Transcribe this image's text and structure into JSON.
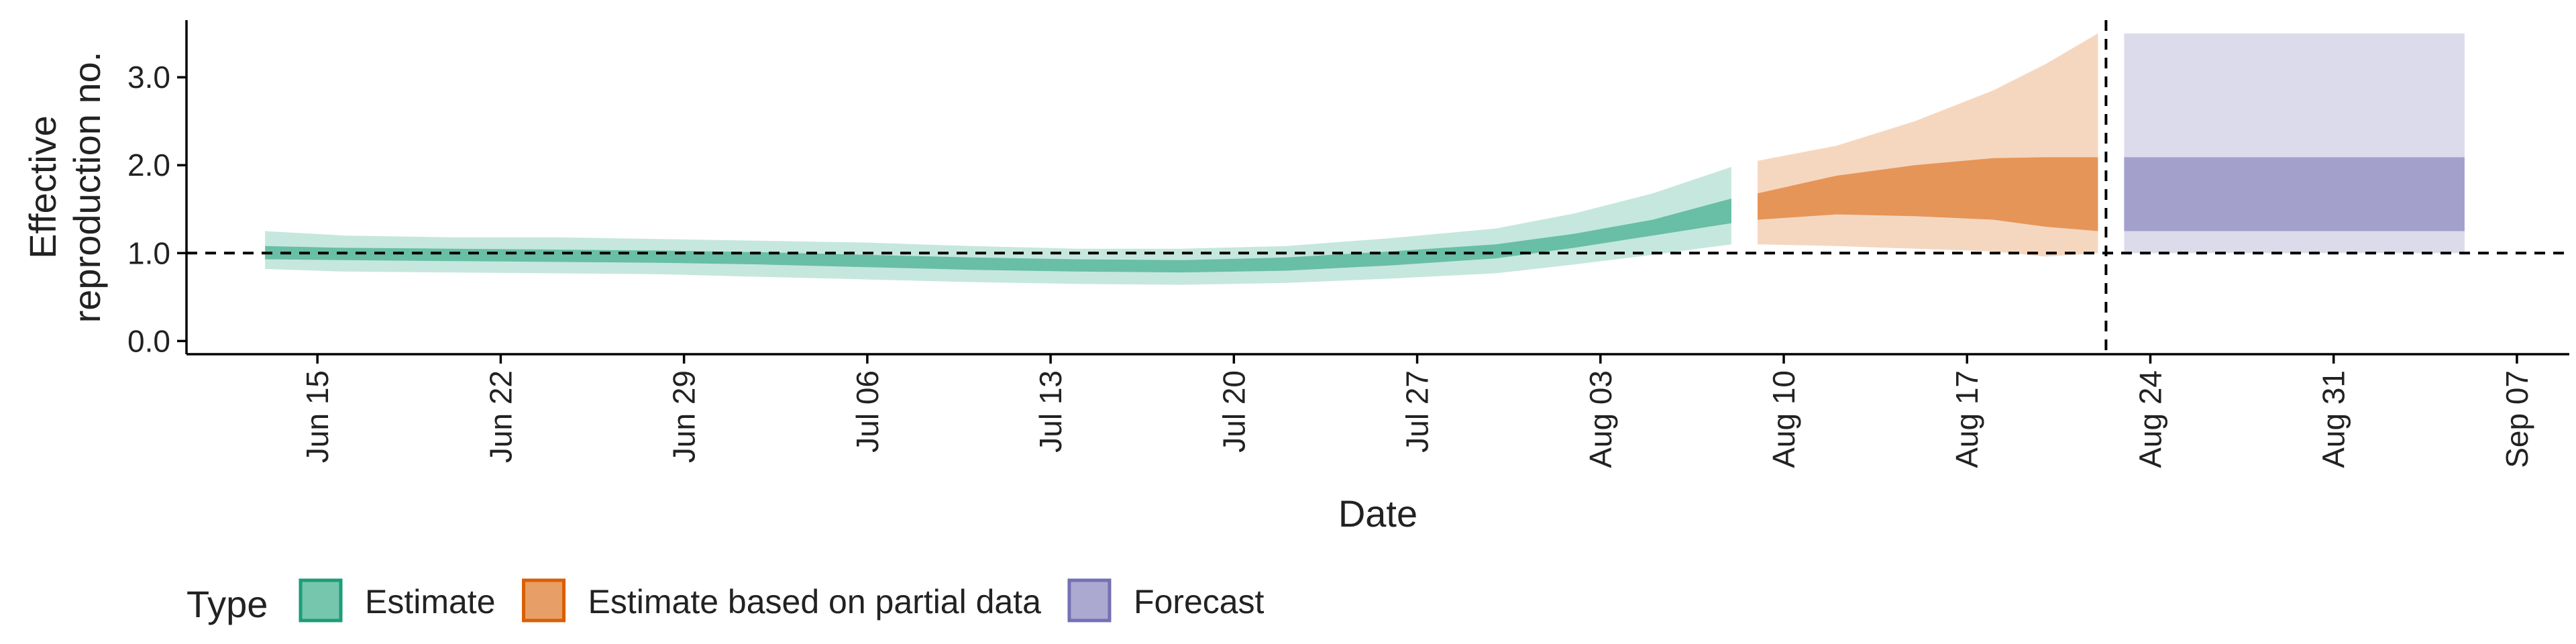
{
  "chart_data": {
    "type": "area",
    "xlabel": "Date",
    "ylabel_lines": [
      "Effective",
      "reproduction no."
    ],
    "ylim": [
      -0.15,
      3.65
    ],
    "xlim": [
      "2020-06-10",
      "2020-09-09"
    ],
    "y_ticks": [
      0.0,
      1.0,
      2.0,
      3.0
    ],
    "y_tick_labels": [
      "0.0",
      "1.0",
      "2.0",
      "3.0"
    ],
    "x_ticks": [
      "2020-06-15",
      "2020-06-22",
      "2020-06-29",
      "2020-07-06",
      "2020-07-13",
      "2020-07-20",
      "2020-07-27",
      "2020-08-03",
      "2020-08-10",
      "2020-08-17",
      "2020-08-24",
      "2020-08-31",
      "2020-09-07"
    ],
    "x_tick_labels": [
      "Jun 15",
      "Jun 22",
      "Jun 29",
      "Jul 06",
      "Jul 13",
      "Jul 20",
      "Jul 27",
      "Aug 03",
      "Aug 10",
      "Aug 17",
      "Aug 24",
      "Aug 31",
      "Sep 07"
    ],
    "reference_line_y": 1.0,
    "forecast_start_date": "2020-08-22",
    "legend": {
      "title": "Type",
      "placement": "bottom-left",
      "items": [
        {
          "label": "Estimate",
          "color": "#1b9e77"
        },
        {
          "label": "Estimate based on partial data",
          "color": "#d95f02"
        },
        {
          "label": "Forecast",
          "color": "#7570b3"
        }
      ]
    },
    "series": [
      {
        "name": "Estimate",
        "color": "#1b9e77",
        "points": [
          {
            "date": "2020-06-13",
            "lo90": 0.82,
            "lo50": 0.93,
            "hi50": 1.08,
            "hi90": 1.25
          },
          {
            "date": "2020-06-16",
            "lo90": 0.79,
            "lo50": 0.92,
            "hi50": 1.06,
            "hi90": 1.2
          },
          {
            "date": "2020-06-20",
            "lo90": 0.78,
            "lo50": 0.91,
            "hi50": 1.05,
            "hi90": 1.18
          },
          {
            "date": "2020-06-24",
            "lo90": 0.77,
            "lo50": 0.9,
            "hi50": 1.04,
            "hi90": 1.18
          },
          {
            "date": "2020-06-28",
            "lo90": 0.76,
            "lo50": 0.89,
            "hi50": 1.03,
            "hi90": 1.16
          },
          {
            "date": "2020-07-02",
            "lo90": 0.73,
            "lo50": 0.87,
            "hi50": 1.01,
            "hi90": 1.14
          },
          {
            "date": "2020-07-06",
            "lo90": 0.7,
            "lo50": 0.84,
            "hi50": 0.98,
            "hi90": 1.12
          },
          {
            "date": "2020-07-10",
            "lo90": 0.67,
            "lo50": 0.81,
            "hi50": 0.95,
            "hi90": 1.08
          },
          {
            "date": "2020-07-14",
            "lo90": 0.65,
            "lo50": 0.79,
            "hi50": 0.93,
            "hi90": 1.05
          },
          {
            "date": "2020-07-18",
            "lo90": 0.64,
            "lo50": 0.78,
            "hi50": 0.92,
            "hi90": 1.05
          },
          {
            "date": "2020-07-22",
            "lo90": 0.66,
            "lo50": 0.8,
            "hi50": 0.95,
            "hi90": 1.08
          },
          {
            "date": "2020-07-26",
            "lo90": 0.71,
            "lo50": 0.86,
            "hi50": 1.02,
            "hi90": 1.17
          },
          {
            "date": "2020-07-30",
            "lo90": 0.77,
            "lo50": 0.94,
            "hi50": 1.1,
            "hi90": 1.28
          },
          {
            "date": "2020-08-02",
            "lo90": 0.87,
            "lo50": 1.06,
            "hi50": 1.22,
            "hi90": 1.45
          },
          {
            "date": "2020-08-05",
            "lo90": 0.98,
            "lo50": 1.2,
            "hi50": 1.38,
            "hi90": 1.68
          },
          {
            "date": "2020-08-08",
            "lo90": 1.1,
            "lo50": 1.34,
            "hi50": 1.62,
            "hi90": 1.98
          }
        ]
      },
      {
        "name": "Estimate based on partial data",
        "color": "#d95f02",
        "points": [
          {
            "date": "2020-08-09",
            "lo90": 1.1,
            "lo50": 1.38,
            "hi50": 1.68,
            "hi90": 2.05
          },
          {
            "date": "2020-08-12",
            "lo90": 1.08,
            "lo50": 1.44,
            "hi50": 1.88,
            "hi90": 2.22
          },
          {
            "date": "2020-08-15",
            "lo90": 1.05,
            "lo50": 1.42,
            "hi50": 2.0,
            "hi90": 2.5
          },
          {
            "date": "2020-08-18",
            "lo90": 1.02,
            "lo50": 1.38,
            "hi50": 2.08,
            "hi90": 2.85
          },
          {
            "date": "2020-08-20",
            "lo90": 0.96,
            "lo50": 1.3,
            "hi50": 2.09,
            "hi90": 3.15
          },
          {
            "date": "2020-08-22",
            "lo90": 1.0,
            "lo50": 1.25,
            "hi50": 2.09,
            "hi90": 3.5
          }
        ]
      },
      {
        "name": "Forecast",
        "color": "#7570b3",
        "points": [
          {
            "date": "2020-08-23",
            "lo90": 1.0,
            "lo50": 1.25,
            "hi50": 2.09,
            "hi90": 3.5
          },
          {
            "date": "2020-09-05",
            "lo90": 1.0,
            "lo50": 1.25,
            "hi50": 2.09,
            "hi90": 3.5
          }
        ]
      }
    ]
  }
}
